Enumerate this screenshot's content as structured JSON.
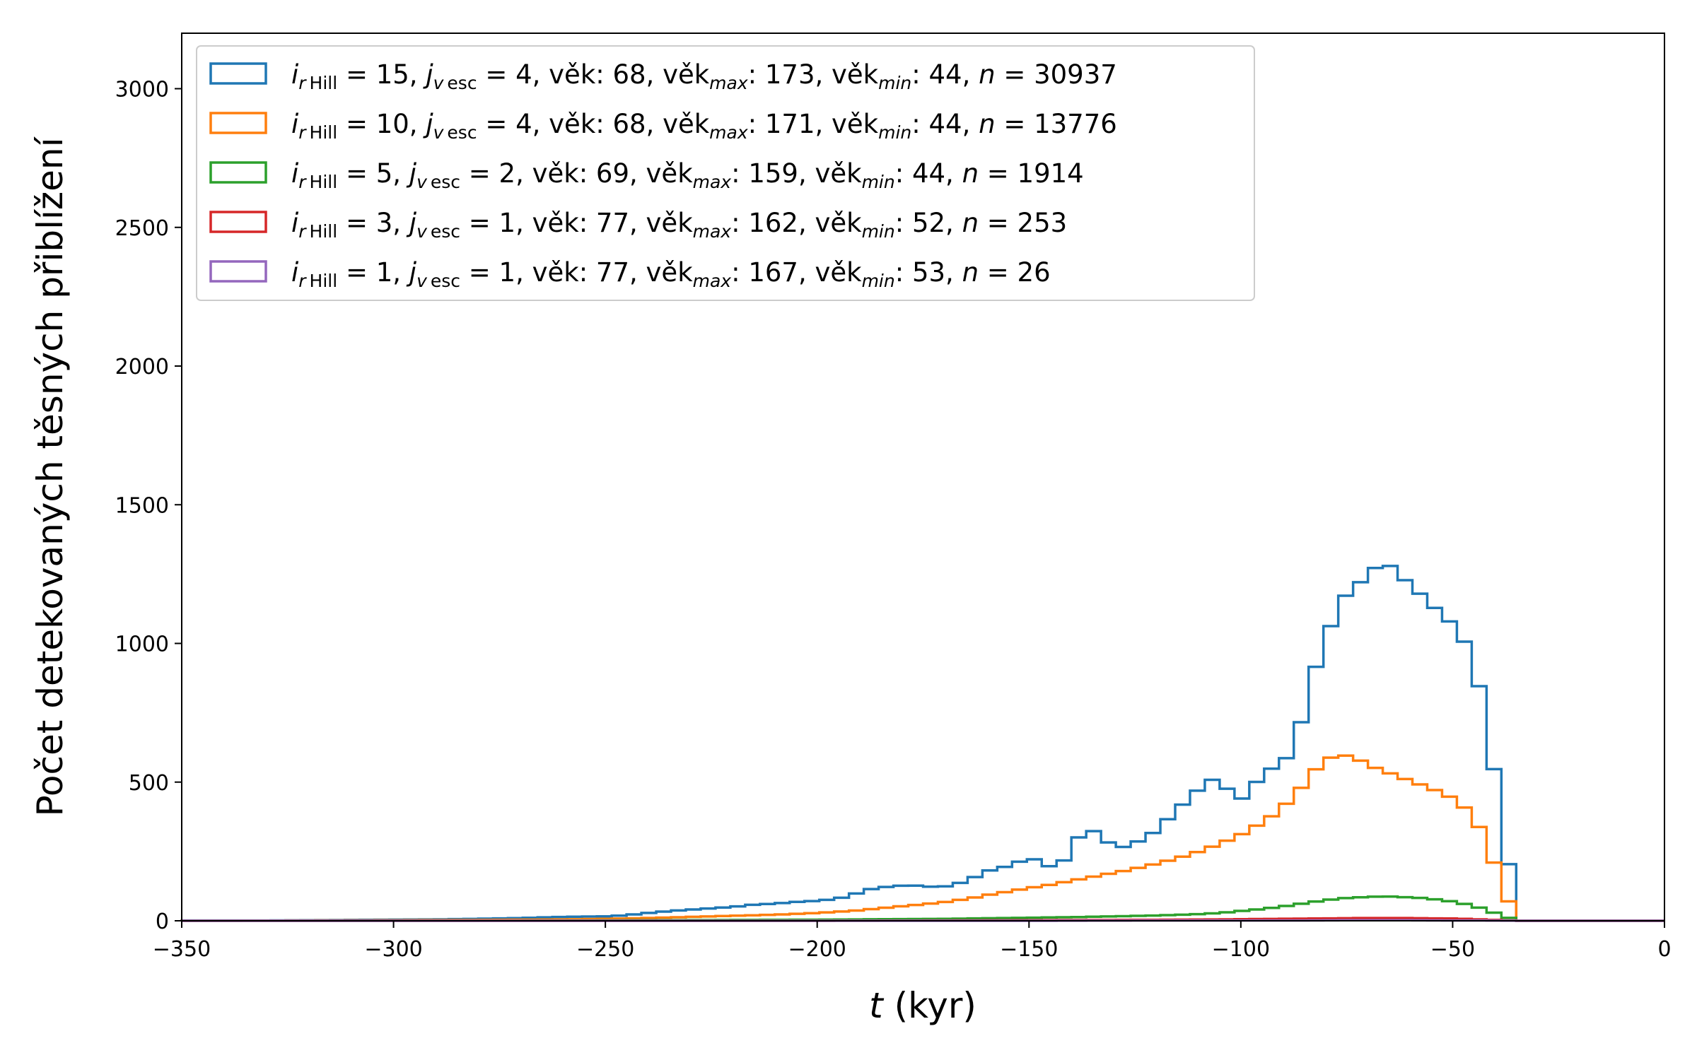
{
  "chart_data": {
    "type": "histogram-step",
    "xlabel_var": "t",
    "xlabel_unit": " (kyr)",
    "ylabel": "Počet detekovaných těsných přiblížení",
    "xlim": [
      -350,
      0
    ],
    "ylim": [
      0,
      3200
    ],
    "xticks": [
      -350,
      -300,
      -250,
      -200,
      -150,
      -100,
      -50,
      0
    ],
    "yticks": [
      0,
      500,
      1000,
      1500,
      2000,
      2500,
      3000
    ],
    "legend_position": "top-left",
    "bin_width": 3.5,
    "series": [
      {
        "color": "#1f77b4",
        "legend": {
          "i": "15",
          "j": "4",
          "vek": "68",
          "vek_max": "173",
          "vek_min": "44",
          "n": "30937"
        },
        "points": [
          [
            -350,
            1
          ],
          [
            -340,
            1
          ],
          [
            -330,
            1
          ],
          [
            -320,
            2
          ],
          [
            -310,
            3
          ],
          [
            -300,
            4
          ],
          [
            -290,
            5
          ],
          [
            -280,
            7
          ],
          [
            -270,
            10
          ],
          [
            -260,
            14
          ],
          [
            -250,
            16
          ],
          [
            -245,
            20
          ],
          [
            -240,
            28
          ],
          [
            -235,
            35
          ],
          [
            -230,
            40
          ],
          [
            -225,
            45
          ],
          [
            -220,
            50
          ],
          [
            -215,
            58
          ],
          [
            -210,
            62
          ],
          [
            -205,
            68
          ],
          [
            -200,
            72
          ],
          [
            -196,
            78
          ],
          [
            -192,
            90
          ],
          [
            -189,
            110
          ],
          [
            -185,
            120
          ],
          [
            -182,
            125
          ],
          [
            -178,
            128
          ],
          [
            -175,
            125
          ],
          [
            -171,
            120
          ],
          [
            -168,
            130
          ],
          [
            -164,
            145
          ],
          [
            -161,
            175
          ],
          [
            -157,
            190
          ],
          [
            -154,
            200
          ],
          [
            -150,
            230
          ],
          [
            -147,
            210
          ],
          [
            -143,
            180
          ],
          [
            -140,
            270
          ],
          [
            -136,
            340
          ],
          [
            -133,
            300
          ],
          [
            -129,
            260
          ],
          [
            -126,
            275
          ],
          [
            -122,
            300
          ],
          [
            -119,
            340
          ],
          [
            -115,
            400
          ],
          [
            -112,
            445
          ],
          [
            -108,
            500
          ],
          [
            -105,
            520
          ],
          [
            -101,
            420
          ],
          [
            -98,
            470
          ],
          [
            -94,
            540
          ],
          [
            -91,
            560
          ],
          [
            -87,
            620
          ],
          [
            -84,
            850
          ],
          [
            -80,
            1000
          ],
          [
            -77,
            1150
          ],
          [
            -73,
            1200
          ],
          [
            -70,
            1250
          ],
          [
            -66,
            1300
          ],
          [
            -63,
            1250
          ],
          [
            -59,
            1200
          ],
          [
            -56,
            1150
          ],
          [
            -52,
            1100
          ],
          [
            -49,
            1050
          ],
          [
            -45,
            950
          ],
          [
            -42,
            700
          ],
          [
            -38,
            350
          ],
          [
            -35,
            0
          ],
          [
            0,
            0
          ]
        ]
      },
      {
        "color": "#ff7f0e",
        "legend": {
          "i": "10",
          "j": "4",
          "vek": "68",
          "vek_max": "171",
          "vek_min": "44",
          "n": "13776"
        },
        "points": [
          [
            -350,
            0
          ],
          [
            -320,
            1
          ],
          [
            -300,
            2
          ],
          [
            -280,
            3
          ],
          [
            -260,
            5
          ],
          [
            -250,
            7
          ],
          [
            -240,
            10
          ],
          [
            -230,
            14
          ],
          [
            -220,
            18
          ],
          [
            -210,
            22
          ],
          [
            -200,
            28
          ],
          [
            -196,
            32
          ],
          [
            -192,
            35
          ],
          [
            -189,
            40
          ],
          [
            -185,
            45
          ],
          [
            -182,
            50
          ],
          [
            -178,
            55
          ],
          [
            -175,
            60
          ],
          [
            -171,
            65
          ],
          [
            -168,
            72
          ],
          [
            -164,
            80
          ],
          [
            -161,
            90
          ],
          [
            -157,
            100
          ],
          [
            -154,
            108
          ],
          [
            -150,
            118
          ],
          [
            -147,
            125
          ],
          [
            -143,
            135
          ],
          [
            -140,
            145
          ],
          [
            -136,
            155
          ],
          [
            -133,
            165
          ],
          [
            -129,
            175
          ],
          [
            -126,
            185
          ],
          [
            -122,
            198
          ],
          [
            -119,
            210
          ],
          [
            -115,
            225
          ],
          [
            -112,
            240
          ],
          [
            -108,
            258
          ],
          [
            -105,
            280
          ],
          [
            -101,
            300
          ],
          [
            -98,
            330
          ],
          [
            -94,
            360
          ],
          [
            -91,
            400
          ],
          [
            -87,
            450
          ],
          [
            -84,
            520
          ],
          [
            -80,
            580
          ],
          [
            -77,
            600
          ],
          [
            -73,
            590
          ],
          [
            -70,
            560
          ],
          [
            -66,
            540
          ],
          [
            -63,
            520
          ],
          [
            -59,
            500
          ],
          [
            -56,
            480
          ],
          [
            -52,
            460
          ],
          [
            -49,
            430
          ],
          [
            -45,
            380
          ],
          [
            -42,
            280
          ],
          [
            -38,
            120
          ],
          [
            -35,
            0
          ],
          [
            0,
            0
          ]
        ]
      },
      {
        "color": "#2ca02c",
        "legend": {
          "i": " 5",
          "j": "2",
          "vek": "69",
          "vek_max": "159",
          "vek_min": "44",
          "n": "1914"
        },
        "points": [
          [
            -350,
            0
          ],
          [
            -300,
            0
          ],
          [
            -260,
            1
          ],
          [
            -240,
            2
          ],
          [
            -220,
            3
          ],
          [
            -200,
            4
          ],
          [
            -190,
            5
          ],
          [
            -180,
            6
          ],
          [
            -170,
            7
          ],
          [
            -160,
            9
          ],
          [
            -150,
            11
          ],
          [
            -140,
            13
          ],
          [
            -130,
            16
          ],
          [
            -120,
            19
          ],
          [
            -110,
            24
          ],
          [
            -105,
            28
          ],
          [
            -101,
            34
          ],
          [
            -98,
            38
          ],
          [
            -94,
            44
          ],
          [
            -91,
            50
          ],
          [
            -87,
            58
          ],
          [
            -84,
            66
          ],
          [
            -80,
            74
          ],
          [
            -77,
            80
          ],
          [
            -73,
            84
          ],
          [
            -70,
            86
          ],
          [
            -66,
            88
          ],
          [
            -63,
            86
          ],
          [
            -59,
            84
          ],
          [
            -56,
            80
          ],
          [
            -52,
            74
          ],
          [
            -49,
            66
          ],
          [
            -45,
            54
          ],
          [
            -42,
            38
          ],
          [
            -38,
            18
          ],
          [
            -35,
            0
          ],
          [
            0,
            0
          ]
        ]
      },
      {
        "color": "#d62728",
        "legend": {
          "i": " 3",
          "j": "1",
          "vek": "77",
          "vek_max": "162",
          "vek_min": "52",
          "n": "253"
        },
        "points": [
          [
            -350,
            0
          ],
          [
            -200,
            0
          ],
          [
            -170,
            1
          ],
          [
            -150,
            2
          ],
          [
            -130,
            3
          ],
          [
            -115,
            4
          ],
          [
            -105,
            5
          ],
          [
            -98,
            6
          ],
          [
            -91,
            7
          ],
          [
            -84,
            8
          ],
          [
            -77,
            9
          ],
          [
            -70,
            10
          ],
          [
            -63,
            10
          ],
          [
            -56,
            9
          ],
          [
            -49,
            8
          ],
          [
            -45,
            6
          ],
          [
            -42,
            4
          ],
          [
            -38,
            2
          ],
          [
            -35,
            0
          ],
          [
            0,
            0
          ]
        ]
      },
      {
        "color": "#9467bd",
        "legend": {
          "i": " 1",
          "j": "1",
          "vek": "77",
          "vek_max": "167",
          "vek_min": "53",
          "n": "26"
        },
        "points": [
          [
            -350,
            0
          ],
          [
            -150,
            0
          ],
          [
            -120,
            1
          ],
          [
            -98,
            1
          ],
          [
            -84,
            1
          ],
          [
            -73,
            2
          ],
          [
            -63,
            2
          ],
          [
            -52,
            1
          ],
          [
            -42,
            1
          ],
          [
            -35,
            0
          ],
          [
            0,
            0
          ]
        ]
      }
    ]
  }
}
